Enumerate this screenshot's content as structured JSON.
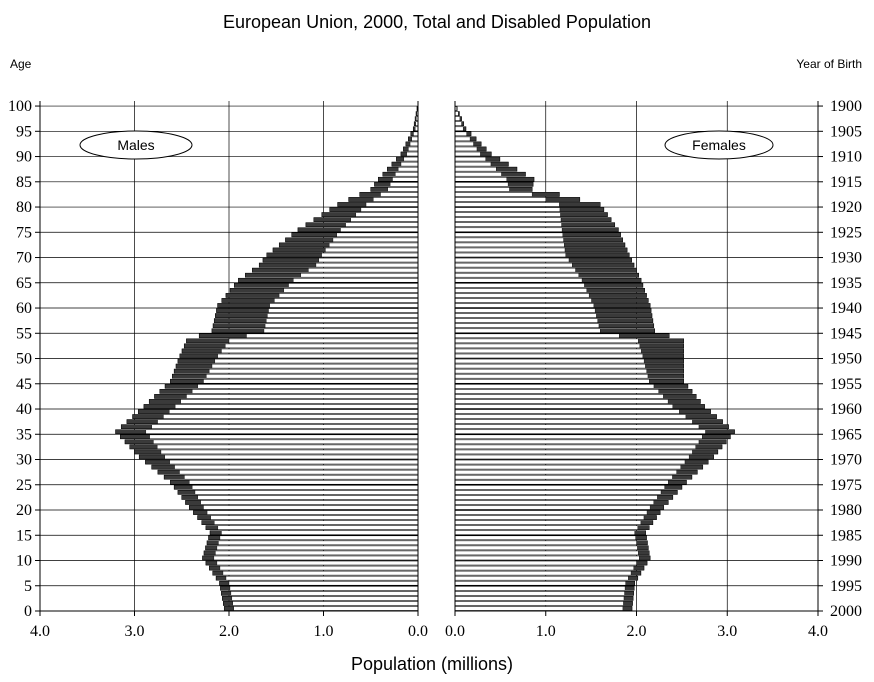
{
  "chart_data": {
    "type": "bar",
    "subtype": "population-pyramid",
    "title": "European Union, 2000, Total and Disabled Population",
    "ylabel_left": "Age",
    "ylabel_right": "Year of Birth",
    "xlabel": "Population  (millions)",
    "xlim": [
      0,
      4.0
    ],
    "x_ticks_left": [
      "4.0",
      "3.0",
      "2.0",
      "1.0",
      "0.0"
    ],
    "x_ticks_right": [
      "0.0",
      "1.0",
      "2.0",
      "3.0",
      "4.0"
    ],
    "age_ticks": [
      "100",
      "95",
      "90",
      "85",
      "80",
      "75",
      "70",
      "65",
      "60",
      "55",
      "50",
      "45",
      "40",
      "35",
      "30",
      "25",
      "20",
      "15",
      "10",
      "5",
      "0"
    ],
    "year_ticks": [
      "1900",
      "1905",
      "1910",
      "1915",
      "1920",
      "1925",
      "1930",
      "1935",
      "1940",
      "1945",
      "1950",
      "1955",
      "1960",
      "1965",
      "1970",
      "1975",
      "1980",
      "1985",
      "1990",
      "1995",
      "2000"
    ],
    "grid": true,
    "panels": [
      {
        "label": "Males",
        "side": "left",
        "label_position": "top-left"
      },
      {
        "label": "Females",
        "side": "right",
        "label_position": "top-right"
      }
    ],
    "colors": {
      "total": "#ffffff",
      "disabled": "#3a3a3a",
      "outline": "#000000"
    },
    "males_anchor": {
      "ages": [
        0,
        5,
        10,
        15,
        20,
        25,
        30,
        35,
        40,
        45,
        50,
        53,
        55,
        60,
        65,
        68,
        70,
        75,
        80,
        83,
        85,
        90,
        95,
        100
      ],
      "total": [
        2.05,
        2.1,
        2.28,
        2.2,
        2.42,
        2.62,
        2.95,
        3.2,
        2.9,
        2.62,
        2.52,
        2.45,
        2.18,
        2.12,
        1.9,
        1.68,
        1.6,
        1.27,
        0.85,
        0.5,
        0.42,
        0.18,
        0.05,
        0.0
      ],
      "disabled": [
        0.1,
        0.1,
        0.12,
        0.12,
        0.15,
        0.2,
        0.27,
        0.32,
        0.33,
        0.35,
        0.4,
        0.45,
        0.55,
        0.55,
        0.58,
        0.6,
        0.58,
        0.45,
        0.3,
        0.18,
        0.15,
        0.06,
        0.02,
        0.0
      ]
    },
    "females_anchor": {
      "ages": [
        0,
        5,
        10,
        15,
        20,
        25,
        30,
        35,
        40,
        45,
        50,
        53,
        55,
        60,
        65,
        70,
        75,
        80,
        82,
        83,
        85,
        90,
        95,
        100
      ],
      "total": [
        1.95,
        1.98,
        2.15,
        2.1,
        2.3,
        2.55,
        2.85,
        3.08,
        2.75,
        2.52,
        2.52,
        2.52,
        2.2,
        2.15,
        2.05,
        1.92,
        1.8,
        1.6,
        1.15,
        0.85,
        0.87,
        0.4,
        0.12,
        0.0
      ],
      "disabled": [
        0.1,
        0.1,
        0.12,
        0.12,
        0.15,
        0.2,
        0.27,
        0.32,
        0.35,
        0.38,
        0.45,
        0.5,
        0.6,
        0.62,
        0.65,
        0.7,
        0.62,
        0.45,
        0.3,
        0.25,
        0.3,
        0.12,
        0.03,
        0.0
      ]
    }
  }
}
